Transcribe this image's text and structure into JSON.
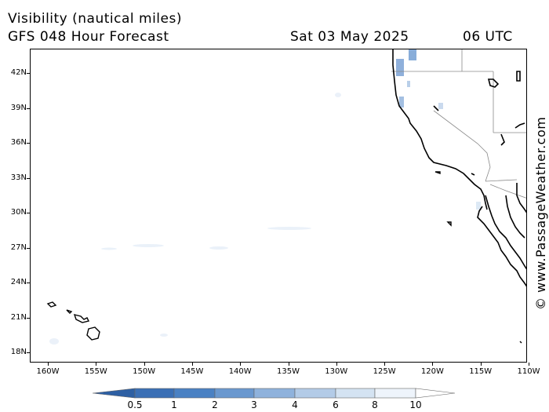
{
  "header": {
    "title": "Visibility (nautical miles)",
    "model": "GFS 048 Hour Forecast",
    "date": "Sat 03 May 2025",
    "time": "06 UTC"
  },
  "credit": "© www.PassageWeather.com",
  "map": {
    "lat_labels": [
      "42N",
      "39N",
      "36N",
      "33N",
      "30N",
      "27N",
      "24N",
      "21N",
      "18N"
    ],
    "lon_labels": [
      "160W",
      "155W",
      "150W",
      "145W",
      "140W",
      "135W",
      "130W",
      "125W",
      "120W",
      "115W",
      "110W"
    ]
  },
  "legend": {
    "labels": [
      "0.5",
      "1",
      "2",
      "3",
      "4",
      "6",
      "8",
      "10"
    ],
    "colors": [
      "#3a6fb5",
      "#4a81c3",
      "#6a98cf",
      "#8fb2dc",
      "#b3cbe7",
      "#d4e3f2",
      "#eef4fb",
      "#ffffff"
    ]
  }
}
